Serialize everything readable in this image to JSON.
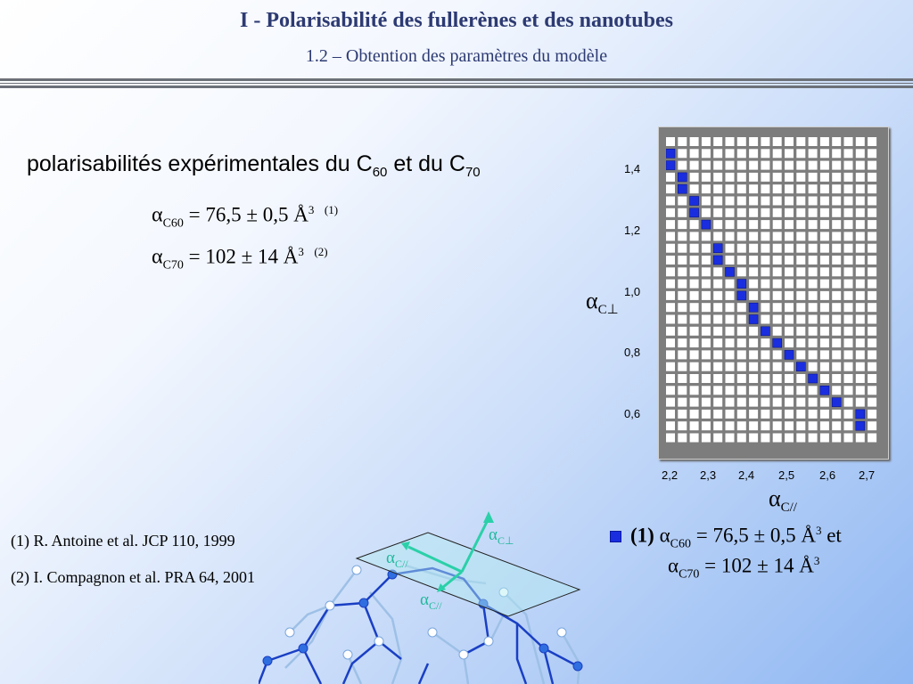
{
  "header": {
    "title": "I  - Polarisabilité des fullerènes et des nanotubes",
    "subtitle": "1.2 – Obtention des paramètres du modèle"
  },
  "section": {
    "heading_text": "polarisabilités expérimentales du C",
    "heading_sub1": "60",
    "heading_mid": " et du C",
    "heading_sub2": "70"
  },
  "equations": [
    {
      "alpha": "α",
      "sub": "C60",
      "text": " = 76,5 ± 0,5 Å",
      "exp": "3",
      "ref": "(1)"
    },
    {
      "alpha": "α",
      "sub": "C70",
      "text": "  = 102 ± 14 Å",
      "exp": "3",
      "ref": "(2)"
    }
  ],
  "references": [
    "(1)  R. Antoine et al. JCP 110, 1999",
    "(2)  I. Compagnon et al. PRA 64, 2001"
  ],
  "chart": {
    "y_label_alpha": "α",
    "y_label_sub": "C⊥",
    "x_label_alpha": "α",
    "x_label_sub": "C//",
    "y_ticks": [
      "1,4",
      "1,2",
      "1,0",
      "0,8",
      "0,6"
    ],
    "x_ticks": [
      "2,2",
      "2,3",
      "2,4",
      "2,5",
      "2,6",
      "2,7"
    ],
    "grid_color": "#ffffff",
    "highlight_color": "#1a2ee0",
    "frame_color": "#7d7d7d"
  },
  "chart_data": {
    "type": "heatmap",
    "xlabel": "αC//",
    "ylabel": "αC⊥",
    "x_ticks": [
      2.2,
      2.3,
      2.4,
      2.5,
      2.6,
      2.7
    ],
    "y_ticks": [
      0.6,
      0.8,
      1.0,
      1.2,
      1.4
    ],
    "xlim": [
      2.17,
      2.72
    ],
    "ylim": [
      0.5,
      1.52
    ],
    "highlighted_cells": [
      {
        "x": 2.18,
        "y": 1.48
      },
      {
        "x": 2.185,
        "y": 1.45
      },
      {
        "x": 2.2,
        "y": 1.41
      },
      {
        "x": 2.21,
        "y": 1.37
      },
      {
        "x": 2.23,
        "y": 1.32
      },
      {
        "x": 2.25,
        "y": 1.27
      },
      {
        "x": 2.27,
        "y": 1.22
      },
      {
        "x": 2.29,
        "y": 1.17
      },
      {
        "x": 2.31,
        "y": 1.12
      },
      {
        "x": 2.33,
        "y": 1.07
      },
      {
        "x": 2.35,
        "y": 1.02
      },
      {
        "x": 2.37,
        "y": 0.98
      },
      {
        "x": 2.39,
        "y": 0.93
      },
      {
        "x": 2.41,
        "y": 0.89
      },
      {
        "x": 2.43,
        "y": 0.85
      },
      {
        "x": 2.45,
        "y": 0.81
      },
      {
        "x": 2.48,
        "y": 0.77
      },
      {
        "x": 2.51,
        "y": 0.73
      },
      {
        "x": 2.55,
        "y": 0.69
      },
      {
        "x": 2.59,
        "y": 0.65
      },
      {
        "x": 2.63,
        "y": 0.61
      },
      {
        "x": 2.68,
        "y": 0.57
      },
      {
        "x": 2.7,
        "y": 0.54
      }
    ]
  },
  "conclusion": {
    "marker": "(1)",
    "line1_alpha": "α",
    "line1_sub": "C60",
    "line1_text": " = 76,5 ± 0,5 Å",
    "line1_exp": "3",
    "line1_tail": "  et",
    "line2_alpha": "α",
    "line2_sub": "C70",
    "line2_text": " = 102 ± 14 Å",
    "line2_exp": "3"
  },
  "figure": {
    "label_perp_alpha": "α",
    "label_perp_sub": "C⊥",
    "label_par1_alpha": "α",
    "label_par1_sub": "C//",
    "label_par2_alpha": "α",
    "label_par2_sub": "C//",
    "arrow_color": "#2bd0a8"
  }
}
